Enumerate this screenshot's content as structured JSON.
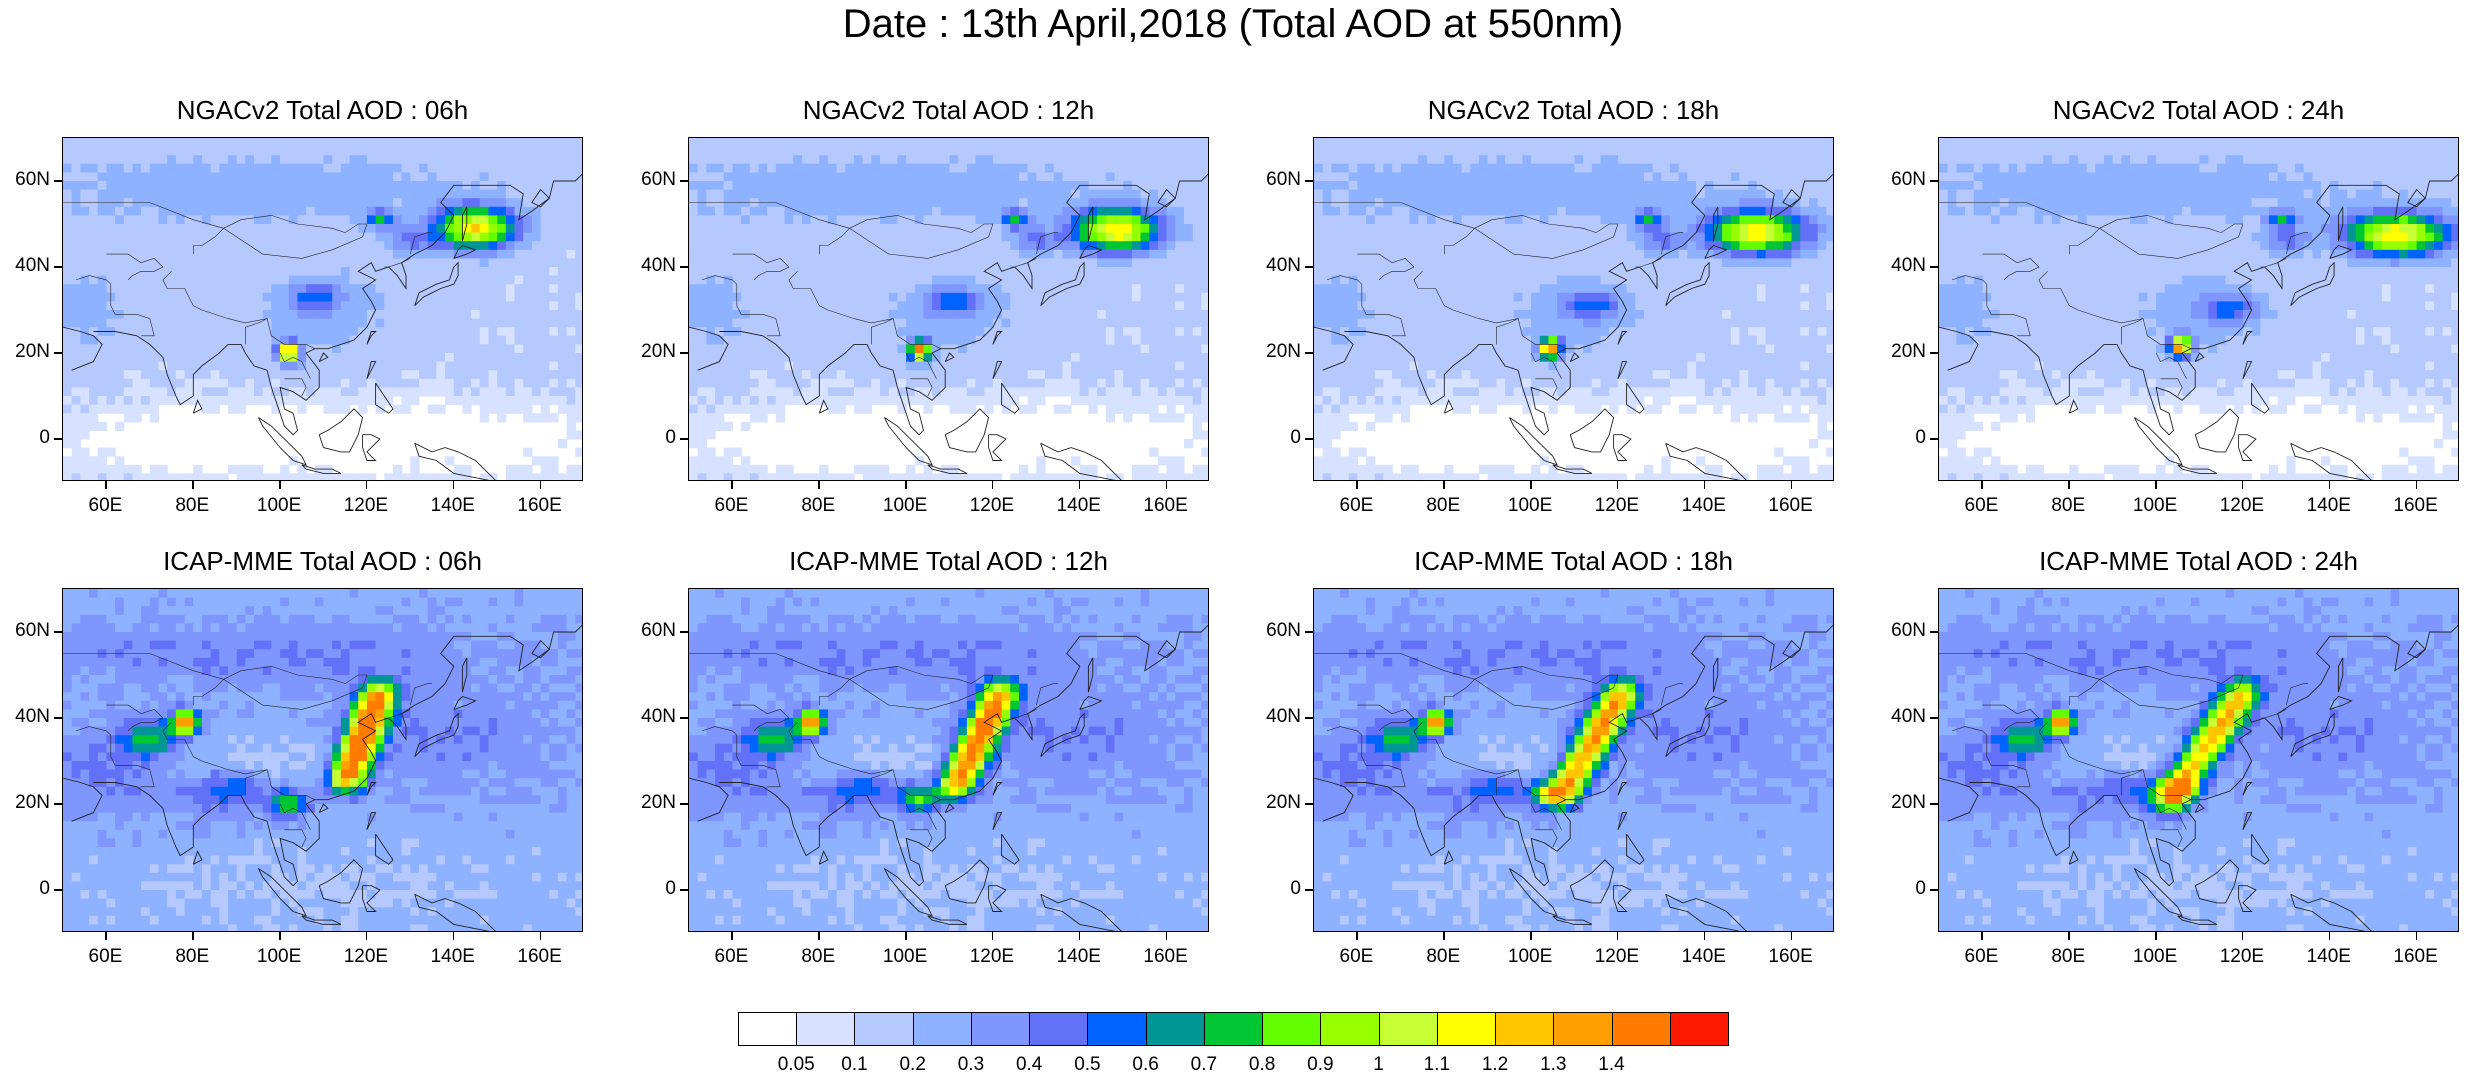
{
  "title": "Date : 13th April,2018 (Total AOD at 550nm)",
  "panels": [
    {
      "title": "NGACv2 Total AOD : 06h",
      "model": "ngac",
      "hour": "06h"
    },
    {
      "title": "NGACv2 Total AOD : 12h",
      "model": "ngac",
      "hour": "12h"
    },
    {
      "title": "NGACv2 Total AOD : 18h",
      "model": "ngac",
      "hour": "18h"
    },
    {
      "title": "NGACv2 Total AOD : 24h",
      "model": "ngac",
      "hour": "24h"
    },
    {
      "title": "ICAP-MME Total AOD : 06h",
      "model": "icap",
      "hour": "06h"
    },
    {
      "title": "ICAP-MME Total AOD : 12h",
      "model": "icap",
      "hour": "12h"
    },
    {
      "title": "ICAP-MME Total AOD : 18h",
      "model": "icap",
      "hour": "18h"
    },
    {
      "title": "ICAP-MME Total AOD : 24h",
      "model": "icap",
      "hour": "24h"
    }
  ],
  "map": {
    "lon_range": [
      50,
      170
    ],
    "lat_range": [
      -10,
      70
    ],
    "lat_ticks": [
      "60N",
      "40N",
      "20N",
      "0"
    ],
    "lon_ticks": [
      "60E",
      "80E",
      "100E",
      "120E",
      "140E",
      "160E"
    ]
  },
  "colorbar": {
    "labels": [
      "0.05",
      "0.1",
      "0.2",
      "0.3",
      "0.4",
      "0.5",
      "0.6",
      "0.7",
      "0.8",
      "0.9",
      "1",
      "1.1",
      "1.2",
      "1.3",
      "1.4"
    ],
    "colors": [
      "#ffffff",
      "#d6e2ff",
      "#b5c9ff",
      "#8eb2ff",
      "#7f96ff",
      "#6370f8",
      "#0063ff",
      "#009696",
      "#00c633",
      "#63ff00",
      "#96ff00",
      "#c6ff33",
      "#ffff00",
      "#ffc600",
      "#ffa000",
      "#ff7c00",
      "#ff1900"
    ]
  },
  "chart_data": {
    "type": "heatmap",
    "variable": "Total AOD at 550nm",
    "date": "13th April,2018",
    "models": [
      "NGACv2",
      "ICAP-MME"
    ],
    "forecast_hours": [
      "06h",
      "12h",
      "18h",
      "24h"
    ],
    "xlim": [
      50,
      170
    ],
    "ylim": [
      -10,
      70
    ],
    "levels": [
      0.05,
      0.1,
      0.2,
      0.3,
      0.4,
      0.5,
      0.6,
      0.7,
      0.8,
      0.9,
      1,
      1.1,
      1.2,
      1.3,
      1.4
    ]
  }
}
